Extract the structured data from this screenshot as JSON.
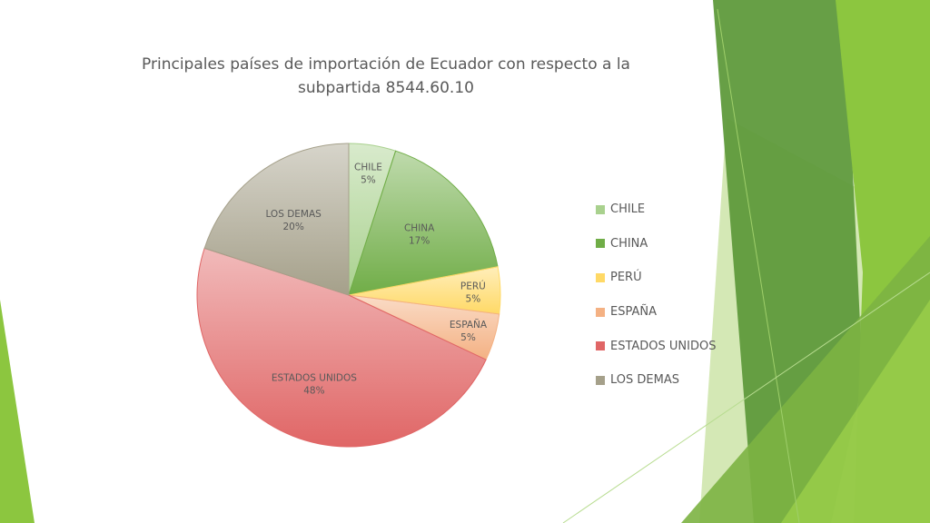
{
  "colors": {
    "accent_dark": "#5f9a3c",
    "accent_mid": "#8cc63f",
    "accent_light": "#cde4a8",
    "text": "#595959"
  },
  "chart_data": {
    "type": "pie",
    "title": "Principales países de importación de Ecuador con respecto a la subpartida 8544.60.10",
    "categories": [
      "CHILE",
      "CHINA",
      "PERÚ",
      "ESPAÑA",
      "ESTADOS UNIDOS",
      "LOS DEMAS"
    ],
    "values": [
      5,
      17,
      5,
      5,
      48,
      20
    ],
    "data_labels": [
      "5%",
      "17%",
      "5%",
      "5%",
      "48%",
      "20%"
    ],
    "colors": [
      "#a9d18e",
      "#70ad47",
      "#ffd966",
      "#f4b183",
      "#e06666",
      "#a5a08a"
    ],
    "start_angle": "12 o'clock",
    "direction": "clockwise",
    "legend_position": "right"
  }
}
